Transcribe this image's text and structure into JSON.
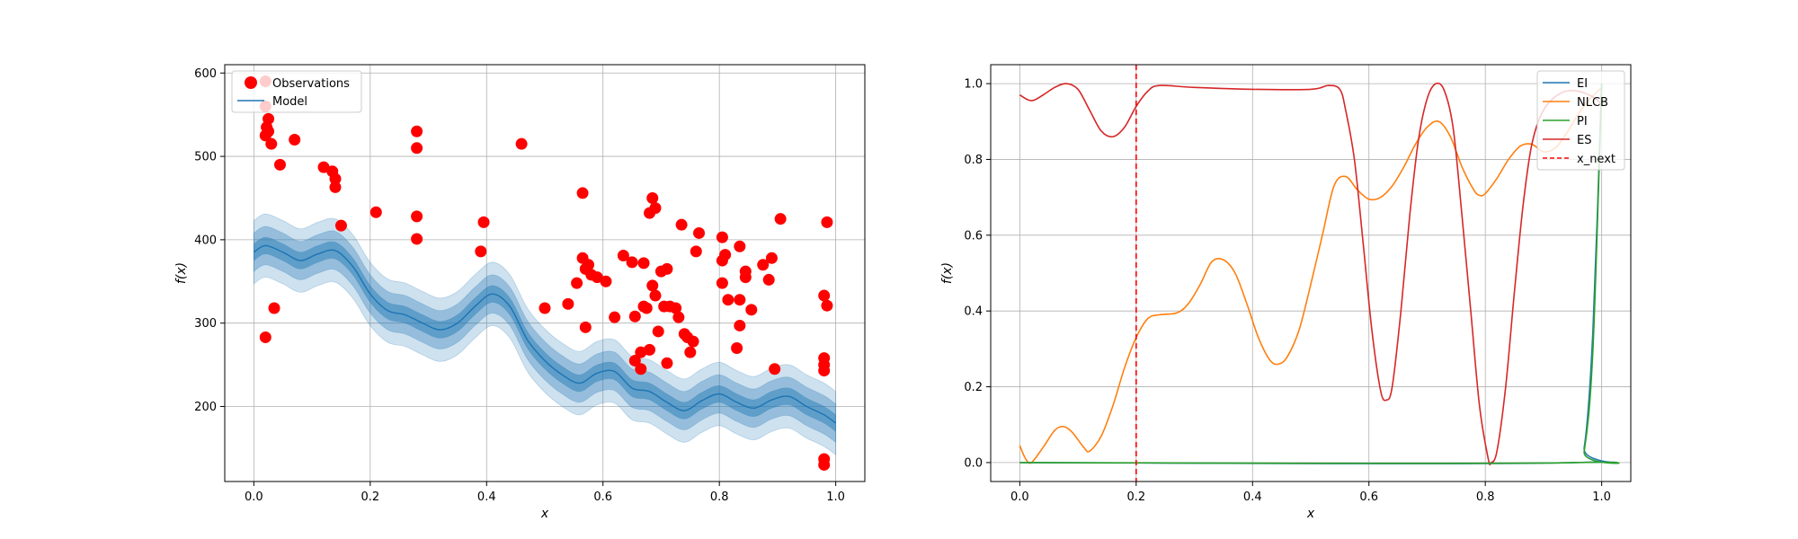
{
  "chart_data": [
    {
      "type": "scatter",
      "xlabel": "x",
      "ylabel": "f(x)",
      "xlim": [
        -0.05,
        1.05
      ],
      "ylim": [
        110,
        610
      ],
      "xticks": [
        "0.0",
        "0.2",
        "0.4",
        "0.6",
        "0.8",
        "1.0"
      ],
      "xtick_values": [
        0.0,
        0.2,
        0.4,
        0.6,
        0.8,
        1.0
      ],
      "yticks": [
        "200",
        "300",
        "400",
        "500",
        "600"
      ],
      "ytick_values": [
        200,
        300,
        400,
        500,
        600
      ],
      "grid": true,
      "legend_position": "top-left",
      "colors": {
        "observations": "#ff0000",
        "model": "#1f77b4"
      },
      "legend": [
        "Observations",
        "Model"
      ],
      "observations": [
        [
          0.02,
          590
        ],
        [
          0.02,
          560
        ],
        [
          0.025,
          545
        ],
        [
          0.022,
          535
        ],
        [
          0.02,
          525
        ],
        [
          0.03,
          515
        ],
        [
          0.025,
          530
        ],
        [
          0.02,
          283
        ],
        [
          0.035,
          318
        ],
        [
          0.045,
          490
        ],
        [
          0.07,
          520
        ],
        [
          0.12,
          487
        ],
        [
          0.135,
          482
        ],
        [
          0.14,
          473
        ],
        [
          0.14,
          463
        ],
        [
          0.15,
          417
        ],
        [
          0.21,
          433
        ],
        [
          0.28,
          530
        ],
        [
          0.28,
          510
        ],
        [
          0.28,
          428
        ],
        [
          0.28,
          401
        ],
        [
          0.39,
          386
        ],
        [
          0.395,
          421
        ],
        [
          0.46,
          515
        ],
        [
          0.5,
          318
        ],
        [
          0.54,
          323
        ],
        [
          0.555,
          348
        ],
        [
          0.565,
          456
        ],
        [
          0.565,
          378
        ],
        [
          0.57,
          365
        ],
        [
          0.57,
          295
        ],
        [
          0.575,
          370
        ],
        [
          0.58,
          358
        ],
        [
          0.59,
          355
        ],
        [
          0.605,
          350
        ],
        [
          0.62,
          307
        ],
        [
          0.635,
          381
        ],
        [
          0.65,
          373
        ],
        [
          0.655,
          308
        ],
        [
          0.655,
          255
        ],
        [
          0.665,
          245
        ],
        [
          0.665,
          265
        ],
        [
          0.67,
          320
        ],
        [
          0.67,
          372
        ],
        [
          0.675,
          318
        ],
        [
          0.68,
          432
        ],
        [
          0.68,
          268
        ],
        [
          0.685,
          450
        ],
        [
          0.685,
          345
        ],
        [
          0.69,
          438
        ],
        [
          0.69,
          333
        ],
        [
          0.695,
          290
        ],
        [
          0.7,
          362
        ],
        [
          0.705,
          320
        ],
        [
          0.71,
          365
        ],
        [
          0.71,
          252
        ],
        [
          0.715,
          320
        ],
        [
          0.725,
          318
        ],
        [
          0.73,
          307
        ],
        [
          0.735,
          418
        ],
        [
          0.74,
          287
        ],
        [
          0.745,
          283
        ],
        [
          0.75,
          265
        ],
        [
          0.755,
          278
        ],
        [
          0.76,
          386
        ],
        [
          0.765,
          408
        ],
        [
          0.805,
          403
        ],
        [
          0.805,
          348
        ],
        [
          0.805,
          375
        ],
        [
          0.81,
          382
        ],
        [
          0.815,
          328
        ],
        [
          0.83,
          270
        ],
        [
          0.835,
          297
        ],
        [
          0.835,
          328
        ],
        [
          0.835,
          392
        ],
        [
          0.845,
          355
        ],
        [
          0.845,
          362
        ],
        [
          0.855,
          316
        ],
        [
          0.875,
          370
        ],
        [
          0.885,
          352
        ],
        [
          0.89,
          378
        ],
        [
          0.895,
          245
        ],
        [
          0.905,
          425
        ],
        [
          0.98,
          333
        ],
        [
          0.98,
          258
        ],
        [
          0.98,
          250
        ],
        [
          0.98,
          243
        ],
        [
          0.98,
          137
        ],
        [
          0.98,
          130
        ],
        [
          0.985,
          421
        ],
        [
          0.985,
          321
        ]
      ],
      "model_mean": [
        [
          0.0,
          385
        ],
        [
          0.02,
          393
        ],
        [
          0.05,
          385
        ],
        [
          0.08,
          375
        ],
        [
          0.11,
          383
        ],
        [
          0.14,
          387
        ],
        [
          0.17,
          368
        ],
        [
          0.2,
          335
        ],
        [
          0.23,
          315
        ],
        [
          0.26,
          310
        ],
        [
          0.29,
          300
        ],
        [
          0.32,
          292
        ],
        [
          0.35,
          300
        ],
        [
          0.38,
          320
        ],
        [
          0.41,
          335
        ],
        [
          0.44,
          320
        ],
        [
          0.47,
          280
        ],
        [
          0.5,
          255
        ],
        [
          0.53,
          238
        ],
        [
          0.56,
          228
        ],
        [
          0.59,
          240
        ],
        [
          0.62,
          242
        ],
        [
          0.65,
          222
        ],
        [
          0.68,
          218
        ],
        [
          0.71,
          205
        ],
        [
          0.74,
          195
        ],
        [
          0.77,
          207
        ],
        [
          0.8,
          215
        ],
        [
          0.83,
          205
        ],
        [
          0.86,
          198
        ],
        [
          0.89,
          208
        ],
        [
          0.92,
          212
        ],
        [
          0.95,
          200
        ],
        [
          0.98,
          190
        ],
        [
          1.0,
          180
        ]
      ],
      "model_band_widths": [
        10,
        23,
        38
      ]
    },
    {
      "type": "line",
      "xlabel": "x",
      "ylabel": "f(x)",
      "xlim": [
        -0.05,
        1.05
      ],
      "ylim": [
        -0.05,
        1.05
      ],
      "xticks": [
        "0.0",
        "0.2",
        "0.4",
        "0.6",
        "0.8",
        "1.0"
      ],
      "xtick_values": [
        0.0,
        0.2,
        0.4,
        0.6,
        0.8,
        1.0
      ],
      "yticks": [
        "0.0",
        "0.2",
        "0.4",
        "0.6",
        "0.8",
        "1.0"
      ],
      "ytick_values": [
        0.0,
        0.2,
        0.4,
        0.6,
        0.8,
        1.0
      ],
      "grid": true,
      "legend_position": "top-right",
      "x_next": 0.2,
      "series": [
        {
          "name": "EI",
          "color": "#1f77b4",
          "points": [
            [
              0.0,
              0.0
            ],
            [
              0.95,
              0.0
            ],
            [
              0.97,
              0.04
            ],
            [
              0.985,
              0.35
            ],
            [
              1.0,
              1.0
            ]
          ]
        },
        {
          "name": "NLCB",
          "color": "#ff7f0e",
          "points": [
            [
              0.0,
              0.045
            ],
            [
              0.01,
              0.01
            ],
            [
              0.02,
              0.0
            ],
            [
              0.04,
              0.04
            ],
            [
              0.06,
              0.085
            ],
            [
              0.075,
              0.095
            ],
            [
              0.09,
              0.08
            ],
            [
              0.11,
              0.04
            ],
            [
              0.12,
              0.03
            ],
            [
              0.14,
              0.07
            ],
            [
              0.16,
              0.15
            ],
            [
              0.18,
              0.25
            ],
            [
              0.2,
              0.33
            ],
            [
              0.22,
              0.38
            ],
            [
              0.24,
              0.39
            ],
            [
              0.27,
              0.395
            ],
            [
              0.29,
              0.42
            ],
            [
              0.31,
              0.47
            ],
            [
              0.33,
              0.53
            ],
            [
              0.35,
              0.535
            ],
            [
              0.37,
              0.5
            ],
            [
              0.39,
              0.42
            ],
            [
              0.41,
              0.33
            ],
            [
              0.43,
              0.27
            ],
            [
              0.445,
              0.26
            ],
            [
              0.46,
              0.28
            ],
            [
              0.48,
              0.35
            ],
            [
              0.5,
              0.47
            ],
            [
              0.52,
              0.6
            ],
            [
              0.54,
              0.73
            ],
            [
              0.56,
              0.755
            ],
            [
              0.58,
              0.72
            ],
            [
              0.6,
              0.695
            ],
            [
              0.62,
              0.7
            ],
            [
              0.64,
              0.73
            ],
            [
              0.66,
              0.78
            ],
            [
              0.68,
              0.84
            ],
            [
              0.7,
              0.885
            ],
            [
              0.72,
              0.9
            ],
            [
              0.74,
              0.86
            ],
            [
              0.76,
              0.78
            ],
            [
              0.78,
              0.72
            ],
            [
              0.79,
              0.705
            ],
            [
              0.8,
              0.71
            ],
            [
              0.82,
              0.75
            ],
            [
              0.84,
              0.8
            ],
            [
              0.86,
              0.835
            ],
            [
              0.88,
              0.84
            ],
            [
              0.9,
              0.82
            ],
            [
              0.92,
              0.83
            ],
            [
              0.94,
              0.87
            ],
            [
              0.96,
              0.92
            ],
            [
              0.98,
              0.96
            ],
            [
              1.0,
              0.99
            ]
          ]
        },
        {
          "name": "PI",
          "color": "#2ca02c",
          "points": [
            [
              0.0,
              0.0
            ],
            [
              0.955,
              0.0
            ],
            [
              0.97,
              0.03
            ],
            [
              0.985,
              0.3
            ],
            [
              1.0,
              1.0
            ]
          ]
        },
        {
          "name": "ES",
          "color": "#d62728",
          "points": [
            [
              0.0,
              0.97
            ],
            [
              0.02,
              0.955
            ],
            [
              0.04,
              0.97
            ],
            [
              0.06,
              0.99
            ],
            [
              0.08,
              1.0
            ],
            [
              0.1,
              0.985
            ],
            [
              0.12,
              0.93
            ],
            [
              0.14,
              0.875
            ],
            [
              0.16,
              0.86
            ],
            [
              0.18,
              0.885
            ],
            [
              0.2,
              0.94
            ],
            [
              0.22,
              0.98
            ],
            [
              0.24,
              0.995
            ],
            [
              0.3,
              0.99
            ],
            [
              0.4,
              0.985
            ],
            [
              0.5,
              0.985
            ],
            [
              0.53,
              0.995
            ],
            [
              0.55,
              0.985
            ],
            [
              0.56,
              0.93
            ],
            [
              0.575,
              0.8
            ],
            [
              0.59,
              0.58
            ],
            [
              0.605,
              0.35
            ],
            [
              0.62,
              0.19
            ],
            [
              0.63,
              0.165
            ],
            [
              0.64,
              0.2
            ],
            [
              0.655,
              0.4
            ],
            [
              0.67,
              0.65
            ],
            [
              0.685,
              0.85
            ],
            [
              0.7,
              0.96
            ],
            [
              0.715,
              1.0
            ],
            [
              0.73,
              0.98
            ],
            [
              0.745,
              0.88
            ],
            [
              0.76,
              0.65
            ],
            [
              0.775,
              0.4
            ],
            [
              0.79,
              0.15
            ],
            [
              0.805,
              0.01
            ],
            [
              0.81,
              0.0
            ],
            [
              0.82,
              0.03
            ],
            [
              0.835,
              0.2
            ],
            [
              0.85,
              0.45
            ],
            [
              0.865,
              0.68
            ],
            [
              0.88,
              0.84
            ],
            [
              0.9,
              0.93
            ],
            [
              0.93,
              0.975
            ],
            [
              0.96,
              0.98
            ],
            [
              0.99,
              0.96
            ],
            [
              1.0,
              0.94
            ]
          ]
        },
        {
          "name": "x_next",
          "color": "#ff0000",
          "dashed": true
        }
      ]
    }
  ]
}
